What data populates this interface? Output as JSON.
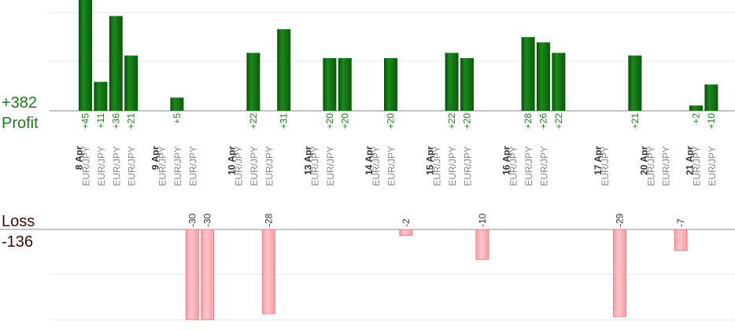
{
  "chart_data": {
    "type": "bar",
    "profit": {
      "label": "Profit",
      "total": "+382",
      "color": "#0f6b0f",
      "bars": [
        {
          "col": 0,
          "value": 45,
          "label": "+45"
        },
        {
          "col": 1,
          "value": 11,
          "label": "+11"
        },
        {
          "col": 2,
          "value": 36,
          "label": "+36"
        },
        {
          "col": 3,
          "value": 21,
          "label": "+21"
        },
        {
          "col": 6,
          "value": 5,
          "label": "+5"
        },
        {
          "col": 11,
          "value": 22,
          "label": "+22"
        },
        {
          "col": 13,
          "value": 31,
          "label": "+31"
        },
        {
          "col": 16,
          "value": 20,
          "label": "+20"
        },
        {
          "col": 17,
          "value": 20,
          "label": "+20"
        },
        {
          "col": 20,
          "value": 20,
          "label": "+20"
        },
        {
          "col": 24,
          "value": 22,
          "label": "+22"
        },
        {
          "col": 25,
          "value": 20,
          "label": "+20"
        },
        {
          "col": 29,
          "value": 28,
          "label": "+28"
        },
        {
          "col": 30,
          "value": 26,
          "label": "+26"
        },
        {
          "col": 31,
          "value": 22,
          "label": "+22"
        },
        {
          "col": 36,
          "value": 21,
          "label": "+21"
        },
        {
          "col": 40,
          "value": 2,
          "label": "+2"
        },
        {
          "col": 41,
          "value": 10,
          "label": "+10"
        }
      ]
    },
    "loss": {
      "label": "Loss",
      "total": "-136",
      "color": "#ffb3b8",
      "bars": [
        {
          "col": 7,
          "value": -30,
          "label": "-30"
        },
        {
          "col": 8,
          "value": -30,
          "label": "-30"
        },
        {
          "col": 12,
          "value": -28,
          "label": "-28"
        },
        {
          "col": 21,
          "value": -2,
          "label": "-2"
        },
        {
          "col": 26,
          "value": -10,
          "label": "-10"
        },
        {
          "col": 35,
          "value": -29,
          "label": "-29"
        },
        {
          "col": 39,
          "value": -7,
          "label": "-7"
        }
      ]
    },
    "dates": [
      {
        "col": 0,
        "label": "8 Apr"
      },
      {
        "col": 5,
        "label": "9 Apr"
      },
      {
        "col": 10,
        "label": "10 Apr"
      },
      {
        "col": 15,
        "label": "13 Apr"
      },
      {
        "col": 19,
        "label": "14 Apr"
      },
      {
        "col": 23,
        "label": "15 Apr"
      },
      {
        "col": 28,
        "label": "16 Apr"
      },
      {
        "col": 34,
        "label": "17 Apr"
      },
      {
        "col": 37,
        "label": "20 Apr"
      },
      {
        "col": 40,
        "label": "21 Apr"
      }
    ],
    "pairs": [
      {
        "col": 1,
        "label": "EUR/JPY"
      },
      {
        "col": 2,
        "label": "EUR/JPY"
      },
      {
        "col": 3,
        "label": "EUR/JPY"
      },
      {
        "col": 4,
        "label": "EUR/JPY"
      },
      {
        "col": 6,
        "label": "EUR/JPY"
      },
      {
        "col": 7,
        "label": "EUR/JPY"
      },
      {
        "col": 8,
        "label": "EUR/JPY"
      },
      {
        "col": 11,
        "label": "EUR/JPY"
      },
      {
        "col": 12,
        "label": "EUR/JPY"
      },
      {
        "col": 13,
        "label": "EUR/JPY"
      },
      {
        "col": 16,
        "label": "EUR/JPY"
      },
      {
        "col": 17,
        "label": "EUR/JPY"
      },
      {
        "col": 20,
        "label": "EUR/JPY"
      },
      {
        "col": 21,
        "label": "EUR/JPY"
      },
      {
        "col": 24,
        "label": "EUR/JPY"
      },
      {
        "col": 25,
        "label": "EUR/JPY"
      },
      {
        "col": 26,
        "label": "EUR/JPY"
      },
      {
        "col": 29,
        "label": "EUR/JPY"
      },
      {
        "col": 30,
        "label": "EUR/JPY"
      },
      {
        "col": 31,
        "label": "EUR/JPY"
      },
      {
        "col": 35,
        "label": "EUR/JPY"
      },
      {
        "col": 38,
        "label": "EUR/JPY"
      },
      {
        "col": 39,
        "label": "EUR/JPY"
      },
      {
        "col": 41,
        "label": "EUR/JPY"
      },
      {
        "col": 42,
        "label": "EUR/JPY"
      }
    ],
    "profit_ylim": [
      0,
      45
    ],
    "loss_ylim": [
      -30,
      0
    ],
    "grid": true,
    "legend": "left"
  }
}
